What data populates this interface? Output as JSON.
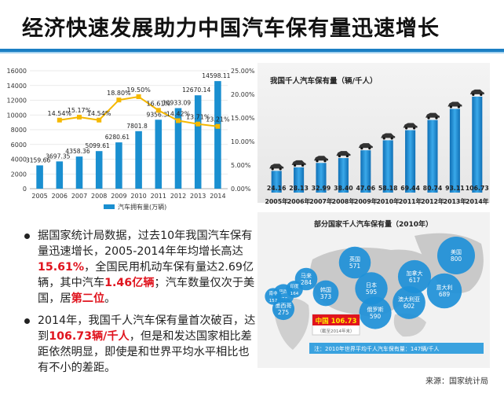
{
  "page": {
    "title": "经济快速发展助力中国汽车保有量迅速增长",
    "source": "来源：国家统计局"
  },
  "bullets": [
    {
      "segments": [
        {
          "t": "据国家统计局数据，过去10年我国汽车保有量迅速增长，2005-2014年年均增长高达",
          "hl": false
        },
        {
          "t": "15.61%",
          "hl": true
        },
        {
          "t": "，全国民用机动车保有量达2.69亿辆，其中汽车",
          "hl": false
        },
        {
          "t": "1.46亿辆",
          "hl": true
        },
        {
          "t": "；汽车数量仅次于美国，居",
          "hl": false
        },
        {
          "t": "第二位",
          "hl": true
        },
        {
          "t": "。",
          "hl": false
        }
      ]
    },
    {
      "segments": [
        {
          "t": "2014年，我国千人汽车保有量首次破百，达到",
          "hl": false
        },
        {
          "t": "106.73辆/千人",
          "hl": true
        },
        {
          "t": "，但是和发达国家相比差距依然明显，即使是和世界平均水平相比也有不小的差距。",
          "hl": false
        }
      ]
    }
  ],
  "colors": {
    "bar": "#1a8fd0",
    "line": "#f5b800",
    "highlight": "#e0141e",
    "bubble": "#1e90d8"
  },
  "chart_data": [
    {
      "type": "bar",
      "categories": [
        "2005",
        "2006",
        "2007",
        "2008",
        "2009",
        "2010",
        "2011",
        "2012",
        "2013",
        "2014"
      ],
      "series": [
        {
          "name": "汽车拥有量(万辆)",
          "type": "bar",
          "axis": "left",
          "values": [
            3159.66,
            3697.35,
            4358.36,
            5099.61,
            6280.61,
            7801.8,
            9356.3,
            10933.09,
            12670.14,
            14598.11
          ],
          "labels": [
            "3159.66",
            "3697.35",
            "4358.36",
            "5099.61",
            "6280.61",
            "7801.8",
            "9356.3",
            "10933.09",
            "12670.14",
            "14598.11"
          ]
        },
        {
          "type": "line",
          "axis": "right",
          "values": [
            null,
            14.54,
            15.17,
            14.54,
            18.8,
            19.5,
            16.61,
            14.42,
            13.71,
            13.21
          ],
          "labels": [
            "",
            "14.54%",
            "15.17%",
            "14.54%",
            "18.80%",
            "19.50%",
            "16.61%",
            "14.42%",
            "13.71%",
            "13.21%"
          ]
        }
      ],
      "ylim": [
        0,
        16000
      ],
      "yticks": [
        "0",
        "2000",
        "4000",
        "6000",
        "8000",
        "10000",
        "12000",
        "14000",
        "16000"
      ],
      "y2lim": [
        0,
        25
      ],
      "y2ticks": [
        "0.00%",
        "5.00%",
        "10.00%",
        "15.00%",
        "20.00%",
        "25.00%"
      ],
      "legend": "bottom"
    },
    {
      "type": "bar",
      "title": "我国千人汽车保有量（辆/千人）",
      "categories": [
        "2005年",
        "2006年",
        "2007年",
        "2008年",
        "2009年",
        "2010年",
        "2011年",
        "2012年",
        "2013年",
        "2014年"
      ],
      "values": [
        24.16,
        28.13,
        32.99,
        38.4,
        47.06,
        58.18,
        69.44,
        80.74,
        93.11,
        106.73
      ],
      "labels": [
        "24.16",
        "28.13",
        "32.99",
        "38.40",
        "47.06",
        "58.18",
        "69.44",
        "80.74",
        "93.11",
        "106.73"
      ]
    },
    {
      "type": "bubble",
      "title": "部分国家千人汽车保有量（2010年）",
      "points": [
        {
          "name": "美国",
          "value": 800
        },
        {
          "name": "意大利",
          "value": 689
        },
        {
          "name": "加拿大",
          "value": 617
        },
        {
          "name": "日本",
          "value": 595
        },
        {
          "name": "英国",
          "value": 571
        },
        {
          "name": "澳大利亚",
          "value": 602
        },
        {
          "name": "俄罗斯",
          "value": 590
        },
        {
          "name": "巴西",
          "value": 256
        },
        {
          "name": "墨西哥",
          "value": 275
        },
        {
          "name": "韩国",
          "value": 373
        },
        {
          "name": "马来",
          "value": 284
        },
        {
          "name": "南非",
          "value": 157
        },
        {
          "name": "印度",
          "value": 164
        }
      ],
      "china": {
        "name": "中国",
        "value": "106.73",
        "note": "（截至2014年末）"
      },
      "footnote": "注：2010年世界平均千人汽车保有量：147辆/千人"
    }
  ]
}
